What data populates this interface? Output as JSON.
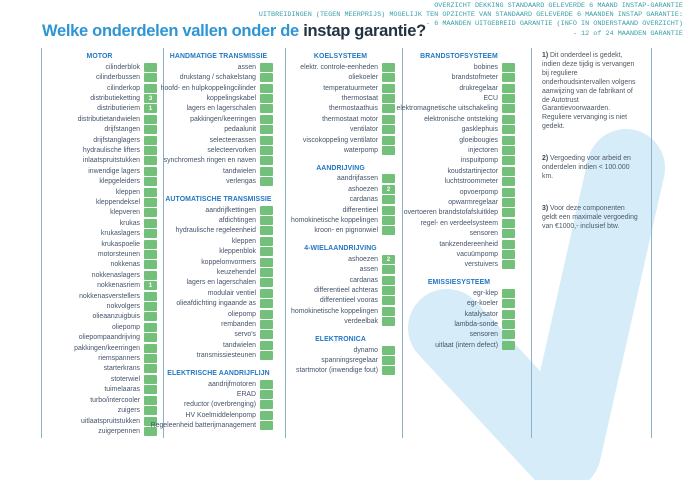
{
  "header_note": {
    "lines": [
      "OVERZICHT DEKKING STANDAARD GELEVERDE 6 MAAND INSTAP-GARANTIE",
      "UITBREIDINGEN (TEGEN MEERPRIJS) MOGELIJK TEN OPZICHTE VAN STANDAARD GELEVERDE 6 MAANDEN INSTAP GARANTIE:",
      "- 6 MAANDEN UITGEBREID GARANTIE (INFO IN ONDERSTAAND OVERZICHT)",
      "- 12 of 24 MAANDEN GARANTIE"
    ]
  },
  "title": {
    "light": "Welke onderdelen vallen onder de ",
    "dark": "instap garantie?"
  },
  "colors": {
    "accent_light_blue": "#2e95d5",
    "title_dark": "#233440",
    "section_header_blue": "#2377c2",
    "checkbox_green": "#72c07a",
    "header_note_teal": "#3aa1a9",
    "watermark_blue": "#d6ecf9",
    "divider_blue": "#8ab1c7"
  },
  "columns": [
    {
      "sections": [
        {
          "title": "MOTOR",
          "items": [
            {
              "label": "cilinderblok"
            },
            {
              "label": "cilinderbussen"
            },
            {
              "label": "cilinderkop"
            },
            {
              "label": "distributieketting",
              "badge": "3"
            },
            {
              "label": "distributieriem",
              "badge": "1"
            },
            {
              "label": "distributietandwielen"
            },
            {
              "label": "drijfstangen"
            },
            {
              "label": "drijfstanglagers"
            },
            {
              "label": "hydraulische lifters"
            },
            {
              "label": "inlaatspruitstukken"
            },
            {
              "label": "inwendige lagers"
            },
            {
              "label": "klepgeleiders"
            },
            {
              "label": "kleppen"
            },
            {
              "label": "kleppendeksel"
            },
            {
              "label": "klepveren"
            },
            {
              "label": "krukas"
            },
            {
              "label": "krukaslagers"
            },
            {
              "label": "krukaspoelie"
            },
            {
              "label": "motorsteunen"
            },
            {
              "label": "nokkenas"
            },
            {
              "label": "nokkenaslagers"
            },
            {
              "label": "nokkenasriem",
              "badge": "1"
            },
            {
              "label": "nokkenasverstellers"
            },
            {
              "label": "nokvolgers"
            },
            {
              "label": "olieaanzuigbuis"
            },
            {
              "label": "oliepomp"
            },
            {
              "label": "oliepompaandrijving"
            },
            {
              "label": "pakkingen/keerringen"
            },
            {
              "label": "riemspanners"
            },
            {
              "label": "starterkrans"
            },
            {
              "label": "stoterwiel"
            },
            {
              "label": "tuimelaaras"
            },
            {
              "label": "turbo/intercooler"
            },
            {
              "label": "zuigers"
            },
            {
              "label": "uitlaatspruitstukken"
            },
            {
              "label": "zuigerpennen"
            }
          ]
        }
      ]
    },
    {
      "sections": [
        {
          "title": "HANDMATIGE TRANSMISSIE",
          "items": [
            {
              "label": "assen"
            },
            {
              "label": "drukstang / schakelstang"
            },
            {
              "label": "hoofd- en hulpkoppelingcilinder"
            },
            {
              "label": "koppelingskabel"
            },
            {
              "label": "lagers en lagerschalen"
            },
            {
              "label": "pakkingen/keerringen"
            },
            {
              "label": "pedaalunit"
            },
            {
              "label": "selecteerassen"
            },
            {
              "label": "selecteervorken"
            },
            {
              "label": "synchromesh ringen en naven"
            },
            {
              "label": "tandwielen"
            },
            {
              "label": "verlengas"
            }
          ]
        },
        {
          "title": "AUTOMATISCHE TRANSMISSIE",
          "items": [
            {
              "label": "aandrijfkettingen"
            },
            {
              "label": "afdichtingen"
            },
            {
              "label": "hydraulische regeleenheid"
            },
            {
              "label": "kleppen"
            },
            {
              "label": "kleppenblok"
            },
            {
              "label": "koppelomvormers"
            },
            {
              "label": "keuzehendel"
            },
            {
              "label": "lagers en lagerschalen"
            },
            {
              "label": "modulair ventiel"
            },
            {
              "label": "olieafdichting ingaande as"
            },
            {
              "label": "oliepomp"
            },
            {
              "label": "rembanden"
            },
            {
              "label": "servo's"
            },
            {
              "label": "tandwielen"
            },
            {
              "label": "transmissiesteunen"
            }
          ]
        },
        {
          "title": "ELEKTRISCHE AANDRIJFLIJN",
          "items": [
            {
              "label": "aandrijfmotoren"
            },
            {
              "label": "ERAD"
            },
            {
              "label": "reductor (overbrenging)"
            },
            {
              "label": "HV Koelmiddelenpomp"
            },
            {
              "label": "Regeleenheid batterijmanagement"
            }
          ]
        }
      ]
    },
    {
      "sections": [
        {
          "title": "KOELSYSTEEM",
          "items": [
            {
              "label": "elektr. controle-eenheden"
            },
            {
              "label": "oliekoeler"
            },
            {
              "label": "temperatuurmeter"
            },
            {
              "label": "thermostaat"
            },
            {
              "label": "thermostaathuis"
            },
            {
              "label": "thermostaat motor"
            },
            {
              "label": "ventilator"
            },
            {
              "label": "viscokoppeling ventilator"
            },
            {
              "label": "waterpomp"
            }
          ]
        },
        {
          "title": "AANDRIJVING",
          "items": [
            {
              "label": "aandrijfassen"
            },
            {
              "label": "ashoezen",
              "badge": "2"
            },
            {
              "label": "cardanas"
            },
            {
              "label": "differentieel"
            },
            {
              "label": "homokinetische koppelingen"
            },
            {
              "label": "kroon- en pignonwiel"
            }
          ]
        },
        {
          "title": "4-WIELAANDRIJVING",
          "items": [
            {
              "label": "ashoezen",
              "badge": "2"
            },
            {
              "label": "assen"
            },
            {
              "label": "cardanas"
            },
            {
              "label": "differentieel achteras"
            },
            {
              "label": "differentieel vooras"
            },
            {
              "label": "homokinetische koppelingen"
            },
            {
              "label": "verdeelbak"
            }
          ]
        },
        {
          "title": "ELEKTRONICA",
          "items": [
            {
              "label": "dynamo"
            },
            {
              "label": "spanningsregelaar"
            },
            {
              "label": "startmotor (inwendige fout)"
            }
          ]
        }
      ]
    },
    {
      "sections": [
        {
          "title": "BRANDSTOFSYSTEEM",
          "items": [
            {
              "label": "bobines"
            },
            {
              "label": "brandstofmeter"
            },
            {
              "label": "drukregelaar"
            },
            {
              "label": "ECU"
            },
            {
              "label": "elektromagnetische uitschakeling"
            },
            {
              "label": "elektronische ontsteking"
            },
            {
              "label": "gasklephuis"
            },
            {
              "label": "gloeibougies"
            },
            {
              "label": "injectoren"
            },
            {
              "label": "inspuitpomp"
            },
            {
              "label": "koudstartinjector"
            },
            {
              "label": "luchtstroommeter"
            },
            {
              "label": "opvoerpomp"
            },
            {
              "label": "opwarmregelaar"
            },
            {
              "label": "overtoeren brandstofafsluitklep"
            },
            {
              "label": "regel- en verdeelsysteem"
            },
            {
              "label": "sensoren"
            },
            {
              "label": "tankzendereenheid"
            },
            {
              "label": "vacuümpomp"
            },
            {
              "label": "verstuivers"
            }
          ]
        },
        {
          "title": "EMISSIESYSTEEM",
          "items": [
            {
              "label": "egr-klep"
            },
            {
              "label": "egr-koeler"
            },
            {
              "label": "katalysator"
            },
            {
              "label": "lambda-sonde"
            },
            {
              "label": "sensoren"
            },
            {
              "label": "uitlaat (intern defect)"
            }
          ]
        }
      ]
    }
  ],
  "notes": [
    {
      "prefix": "1)",
      "text": "Dit onderdeel is gedekt, indien deze tijdig is vervangen bij reguliere onderhoudsintervallen volgens aanwijzing van de fabrikant of de Autotrust Garantievoorwaarden. Reguliere vervanging is niet gedekt."
    },
    {
      "prefix": "2)",
      "text": "Vergoeding voor arbeid en onderdelen indien < 100.000 km."
    },
    {
      "prefix": "3)",
      "text": "Voor deze componenten geldt een maximale vergoeding van €1000,- inclusief btw."
    }
  ]
}
